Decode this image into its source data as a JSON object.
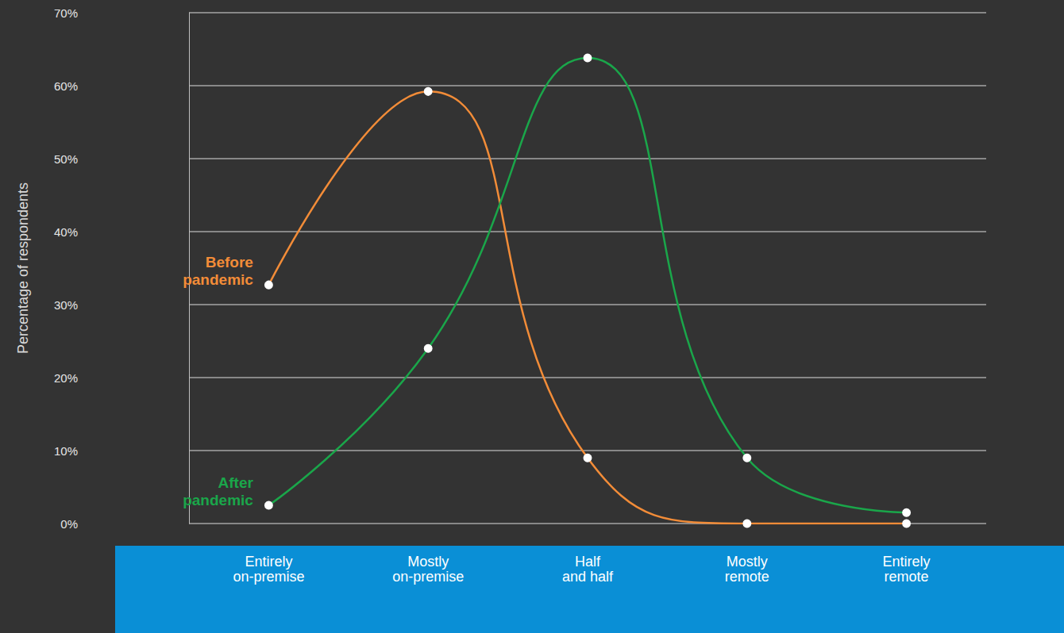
{
  "chart_data": {
    "type": "line",
    "categories": [
      "Entirely on-premise",
      "Mostly on-premise",
      "Half and half",
      "Mostly remote",
      "Entirely remote"
    ],
    "series": [
      {
        "name": "Before pandemic",
        "color": "#f28c38",
        "values": [
          32.7,
          59.2,
          9,
          0,
          0
        ]
      },
      {
        "name": "After pandemic",
        "color": "#1aa64a",
        "values": [
          2.5,
          24,
          63.8,
          9,
          1.5
        ]
      }
    ],
    "ylabel": "Percentage of respondents",
    "ylim": [
      0,
      70
    ],
    "yticks": [
      {
        "value": 0,
        "label": "0%"
      },
      {
        "value": 10,
        "label": "10%"
      },
      {
        "value": 20,
        "label": "20%"
      },
      {
        "value": 30,
        "label": "30%"
      },
      {
        "value": 40,
        "label": "40%"
      },
      {
        "value": 50,
        "label": "50%"
      },
      {
        "value": 60,
        "label": "60%"
      },
      {
        "value": 70,
        "label": "70%"
      }
    ],
    "grid": true,
    "marker": "circle",
    "line_style": "solid"
  }
}
